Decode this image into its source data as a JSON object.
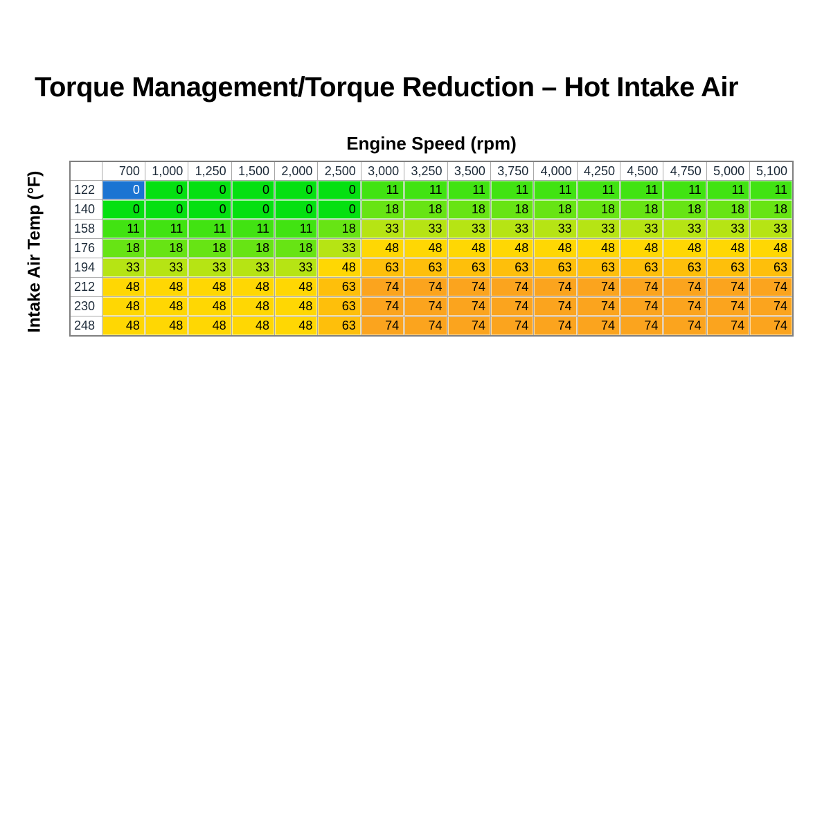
{
  "page": {
    "title": "Torque Management/Torque Reduction – Hot Intake Air",
    "x_axis_label": "Engine Speed (rpm)",
    "y_axis_label": "Intake Air Temp (°F)"
  },
  "chart_data": {
    "type": "heatmap",
    "title": "Torque Management/Torque Reduction – Hot Intake Air",
    "xlabel": "Engine Speed (rpm)",
    "ylabel": "Intake Air Temp (°F)",
    "columns": [
      "700",
      "1,000",
      "1,250",
      "1,500",
      "2,000",
      "2,500",
      "3,000",
      "3,250",
      "3,500",
      "3,750",
      "4,000",
      "4,250",
      "4,500",
      "4,750",
      "5,000",
      "5,100"
    ],
    "rows": [
      "122",
      "140",
      "158",
      "176",
      "194",
      "212",
      "230",
      "248"
    ],
    "values": [
      [
        0,
        0,
        0,
        0,
        0,
        0,
        11,
        11,
        11,
        11,
        11,
        11,
        11,
        11,
        11,
        11
      ],
      [
        0,
        0,
        0,
        0,
        0,
        0,
        18,
        18,
        18,
        18,
        18,
        18,
        18,
        18,
        18,
        18
      ],
      [
        11,
        11,
        11,
        11,
        11,
        18,
        33,
        33,
        33,
        33,
        33,
        33,
        33,
        33,
        33,
        33
      ],
      [
        18,
        18,
        18,
        18,
        18,
        33,
        48,
        48,
        48,
        48,
        48,
        48,
        48,
        48,
        48,
        48
      ],
      [
        33,
        33,
        33,
        33,
        33,
        48,
        63,
        63,
        63,
        63,
        63,
        63,
        63,
        63,
        63,
        63
      ],
      [
        48,
        48,
        48,
        48,
        48,
        63,
        74,
        74,
        74,
        74,
        74,
        74,
        74,
        74,
        74,
        74
      ],
      [
        48,
        48,
        48,
        48,
        48,
        63,
        74,
        74,
        74,
        74,
        74,
        74,
        74,
        74,
        74,
        74
      ],
      [
        48,
        48,
        48,
        48,
        48,
        63,
        74,
        74,
        74,
        74,
        74,
        74,
        74,
        74,
        74,
        74
      ]
    ],
    "selected_cell": {
      "row": "122",
      "column": "700",
      "value": 0
    },
    "legend_position": "none",
    "grid": true
  },
  "colors": {
    "value_fill": {
      "0": "#05E011",
      "11": "#41E312",
      "18": "#67E414",
      "33": "#B6E414",
      "48": "#FFD703",
      "63": "#FEBF0B",
      "74": "#FBA41E"
    },
    "selected_fill": "#1B74D2",
    "selected_text": "#FFFFFF",
    "cell_text": "#000000",
    "header_text": "#1C2A38",
    "header_fill": "#FFFFFF",
    "grid_line": "#A8A8A8",
    "outer_border": "#7F7F7F",
    "page_background": "#FFFFFF"
  }
}
